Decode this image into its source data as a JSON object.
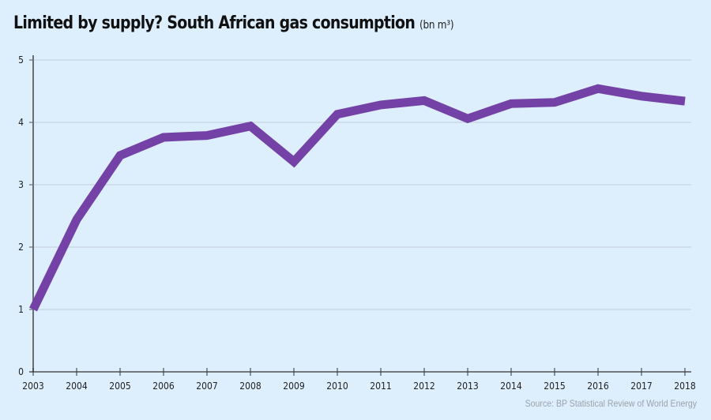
{
  "chart_data": {
    "type": "line",
    "title": "Limited by supply? South African gas consumption",
    "unit": "(bn m³)",
    "xlabel": "",
    "ylabel": "",
    "x": [
      "2003",
      "2004",
      "2005",
      "2006",
      "2007",
      "2008",
      "2009",
      "2010",
      "2011",
      "2012",
      "2013",
      "2014",
      "2015",
      "2016",
      "2017",
      "2018"
    ],
    "series": [
      {
        "name": "South African gas consumption",
        "color": "#7442a6",
        "values": [
          1.0,
          2.44,
          3.47,
          3.76,
          3.79,
          3.94,
          3.37,
          4.13,
          4.28,
          4.35,
          4.06,
          4.3,
          4.32,
          4.54,
          4.42,
          4.34
        ]
      }
    ],
    "yticks": [
      0,
      1,
      2,
      3,
      4,
      5
    ],
    "ylim": [
      0,
      5
    ],
    "grid": true,
    "legend": "none",
    "source": "Source: BP Statistical Review of World Energy"
  }
}
